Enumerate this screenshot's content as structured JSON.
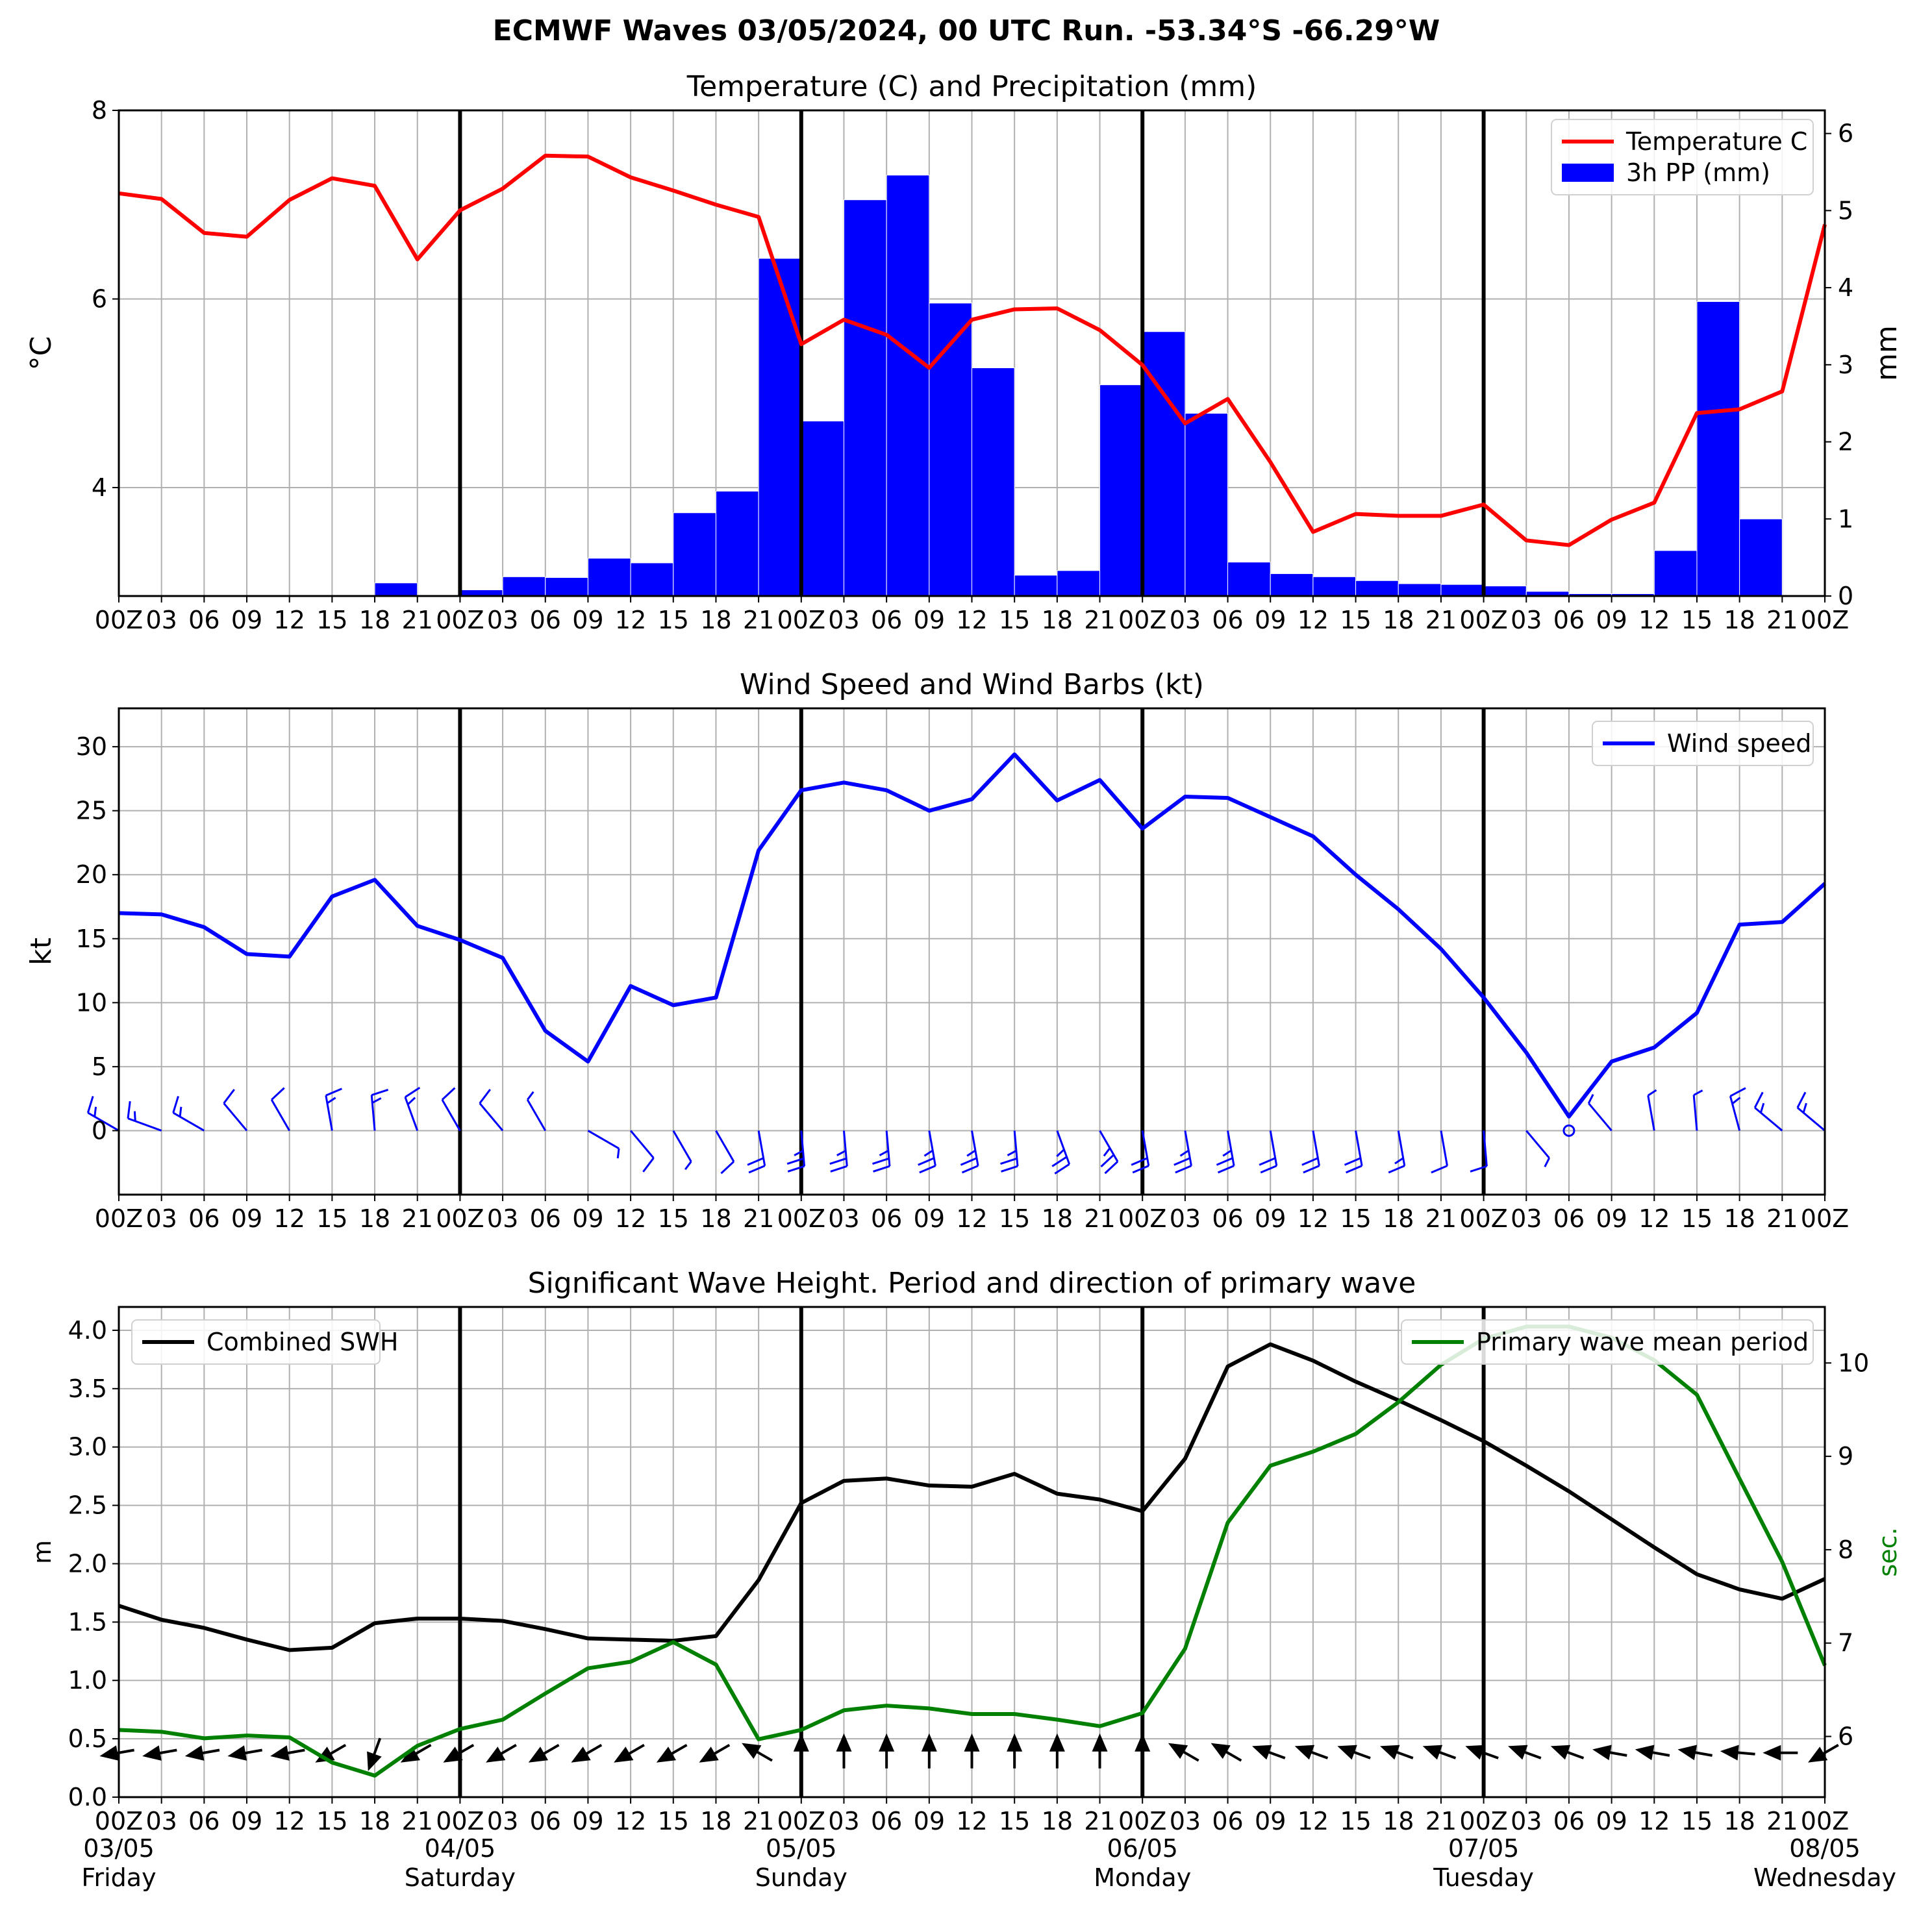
{
  "figure": {
    "title": "ECMWF Waves 03/05/2024, 00 UTC Run. -53.34°S -66.29°W"
  },
  "time_axis": {
    "hour_labels": [
      "00Z",
      "03",
      "06",
      "09",
      "12",
      "15",
      "18",
      "21",
      "00Z",
      "03",
      "06",
      "09",
      "12",
      "15",
      "18",
      "21",
      "00Z",
      "03",
      "06",
      "09",
      "12",
      "15",
      "18",
      "21",
      "00Z",
      "03",
      "06",
      "09",
      "12",
      "15",
      "18",
      "21",
      "00Z",
      "03",
      "06",
      "09",
      "12",
      "15",
      "18",
      "21",
      "00Z"
    ],
    "day_labels": [
      {
        "date": "03/05",
        "day": "Friday"
      },
      {
        "date": "04/05",
        "day": "Saturday"
      },
      {
        "date": "05/05",
        "day": "Sunday"
      },
      {
        "date": "06/05",
        "day": "Monday"
      },
      {
        "date": "07/05",
        "day": "Tuesday"
      },
      {
        "date": "08/05",
        "day": "Wednesday"
      }
    ]
  },
  "chart_data": [
    {
      "type": "line",
      "title": "Temperature (C) and Precipitation (mm)",
      "ylabel": "°C",
      "ylabel_right": "mm",
      "x_hours": [
        0,
        3,
        6,
        9,
        12,
        15,
        18,
        21,
        24,
        27,
        30,
        33,
        36,
        39,
        42,
        45,
        48,
        51,
        54,
        57,
        60,
        63,
        66,
        69,
        72,
        75,
        78,
        81,
        84,
        87,
        90,
        93,
        96,
        99,
        102,
        105,
        108,
        111,
        114,
        117,
        120
      ],
      "ylim": [
        2.85,
        8.0
      ],
      "yticks": [
        4,
        6,
        8
      ],
      "ylim_right": [
        0,
        6.3
      ],
      "yticks_right": [
        0,
        1,
        2,
        3,
        4,
        5,
        6
      ],
      "grid": true,
      "legend_position": "top-right",
      "series": [
        {
          "name": "Temperature C",
          "color": "#ff0000",
          "kind": "line",
          "axis": "left",
          "values": [
            7.12,
            7.06,
            6.7,
            6.66,
            7.05,
            7.28,
            7.2,
            6.42,
            6.94,
            7.17,
            7.52,
            7.51,
            7.29,
            7.15,
            7.0,
            6.87,
            5.52,
            5.78,
            5.62,
            5.27,
            5.78,
            5.89,
            5.9,
            5.67,
            5.3,
            4.68,
            4.94,
            4.27,
            3.53,
            3.72,
            3.7,
            3.7,
            3.82,
            3.44,
            3.39,
            3.66,
            3.84,
            4.79,
            4.83,
            5.02,
            6.79
          ]
        },
        {
          "name": "3h PP (mm)",
          "color": "#0000ff",
          "kind": "bar",
          "axis": "right",
          "bars_x": [
            18,
            21,
            24,
            27,
            30,
            33,
            36,
            39,
            42,
            45,
            48,
            51,
            54,
            57,
            60,
            63,
            66,
            69,
            72,
            75,
            78,
            81,
            84,
            87,
            90,
            93,
            96,
            99,
            102,
            105,
            108,
            111,
            114,
            117
          ],
          "values": [
            0.17,
            0,
            0.08,
            0.25,
            0.24,
            0.49,
            0.43,
            1.08,
            1.36,
            4.38,
            2.27,
            5.14,
            5.46,
            3.8,
            2.96,
            0.27,
            0.33,
            2.74,
            3.43,
            2.37,
            0.44,
            0.29,
            0.25,
            0.2,
            0.16,
            0.15,
            0.13,
            0.06,
            0.03,
            0.03,
            0.59,
            3.82,
            1.0,
            0
          ]
        }
      ]
    },
    {
      "type": "line",
      "title": "Wind Speed and Wind Barbs (kt)",
      "ylabel": "kt",
      "x_hours": [
        0,
        3,
        6,
        9,
        12,
        15,
        18,
        21,
        24,
        27,
        30,
        33,
        36,
        39,
        42,
        45,
        48,
        51,
        54,
        57,
        60,
        63,
        66,
        69,
        72,
        75,
        78,
        81,
        84,
        87,
        90,
        93,
        96,
        99,
        102,
        105,
        108,
        111,
        114,
        117,
        120
      ],
      "ylim": [
        -5,
        33
      ],
      "yticks": [
        0,
        5,
        10,
        15,
        20,
        25,
        30
      ],
      "grid": true,
      "legend_position": "top-right",
      "series": [
        {
          "name": "Wind speed",
          "color": "#0000ff",
          "values": [
            17.0,
            16.9,
            15.9,
            13.8,
            13.6,
            18.3,
            19.6,
            16.0,
            14.9,
            13.5,
            7.8,
            5.4,
            11.3,
            9.8,
            10.4,
            21.9,
            26.6,
            27.2,
            26.6,
            25.0,
            25.9,
            29.4,
            25.8,
            27.4,
            23.6,
            26.1,
            26.0,
            24.5,
            23.0,
            20.0,
            17.3,
            14.2,
            10.4,
            6.1,
            1.1,
            5.4,
            6.5,
            9.2,
            16.1,
            16.3,
            19.3
          ]
        },
        {
          "name": "wind barbs",
          "color": "#0000ff",
          "kind": "barbs",
          "direction_deg": [
            300,
            290,
            300,
            320,
            330,
            350,
            355,
            340,
            330,
            320,
            330,
            120,
            140,
            150,
            150,
            170,
            175,
            175,
            175,
            170,
            170,
            175,
            160,
            150,
            170,
            170,
            170,
            170,
            170,
            170,
            170,
            170,
            175,
            140,
            0,
            320,
            350,
            355,
            345,
            310,
            310
          ]
        }
      ]
    },
    {
      "type": "line",
      "title": "Significant Wave Height. Period and direction of primary wave",
      "ylabel": "m",
      "ylabel_right": "sec.",
      "x_hours": [
        0,
        3,
        6,
        9,
        12,
        15,
        18,
        21,
        24,
        27,
        30,
        33,
        36,
        39,
        42,
        45,
        48,
        51,
        54,
        57,
        60,
        63,
        66,
        69,
        72,
        75,
        78,
        81,
        84,
        87,
        90,
        93,
        96,
        99,
        102,
        105,
        108,
        111,
        114,
        117,
        120
      ],
      "ylim": [
        0,
        4.2
      ],
      "yticks": [
        0.0,
        0.5,
        1.0,
        1.5,
        2.0,
        2.5,
        3.0,
        3.5,
        4.0
      ],
      "ylim_right": [
        5.35,
        10.6
      ],
      "yticks_right": [
        6,
        7,
        8,
        9,
        10
      ],
      "grid": true,
      "series": [
        {
          "name": "Combined SWH",
          "color": "#000000",
          "axis": "left",
          "legend_position": "top-left",
          "values": [
            1.64,
            1.52,
            1.45,
            1.35,
            1.26,
            1.28,
            1.49,
            1.53,
            1.53,
            1.51,
            1.44,
            1.36,
            1.35,
            1.34,
            1.38,
            1.86,
            2.52,
            2.71,
            2.73,
            2.67,
            2.66,
            2.77,
            2.6,
            2.55,
            2.45,
            2.9,
            3.69,
            3.88,
            3.74,
            3.56,
            3.4,
            3.23,
            3.05,
            2.84,
            2.62,
            2.38,
            2.14,
            1.91,
            1.78,
            1.7,
            1.87
          ]
        },
        {
          "name": "Primary wave mean period",
          "color": "#008000",
          "axis": "right",
          "legend_position": "top-right",
          "values": [
            6.07,
            6.05,
            5.98,
            6.01,
            5.99,
            5.72,
            5.58,
            5.9,
            6.08,
            6.18,
            6.46,
            6.73,
            6.8,
            7.01,
            6.77,
            5.97,
            6.07,
            6.28,
            6.33,
            6.3,
            6.24,
            6.24,
            6.18,
            6.11,
            6.25,
            6.94,
            8.29,
            8.9,
            9.05,
            9.24,
            9.58,
            9.98,
            10.26,
            10.39,
            10.39,
            10.27,
            10.03,
            9.66,
            8.76,
            7.87,
            6.76
          ]
        },
        {
          "name": "primary wave direction",
          "color": "#000000",
          "kind": "arrows",
          "direction_deg": [
            80,
            80,
            80,
            80,
            80,
            60,
            20,
            60,
            60,
            60,
            60,
            60,
            60,
            60,
            60,
            120,
            180,
            180,
            180,
            180,
            180,
            180,
            180,
            180,
            180,
            120,
            120,
            110,
            110,
            110,
            110,
            110,
            110,
            110,
            110,
            100,
            100,
            100,
            95,
            90,
            60
          ]
        }
      ]
    }
  ]
}
